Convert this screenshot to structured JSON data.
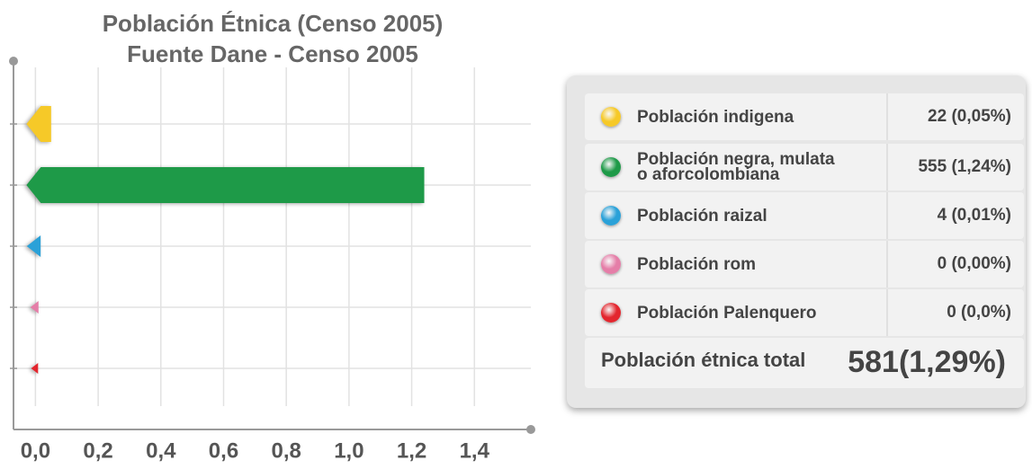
{
  "chart_data": {
    "type": "bar",
    "orientation": "horizontal",
    "title": [
      "Población Étnica (Censo 2005)",
      "Fuente Dane - Censo 2005"
    ],
    "categories": [
      null,
      null,
      null,
      null,
      null
    ],
    "values": [
      0.05,
      1.24,
      0.01,
      0,
      0
    ],
    "colors": [
      "#f6c928",
      "#1e9a48",
      "#2aa1d8",
      "#e57ea8",
      "#e3262e"
    ],
    "xlim": [
      -0.07,
      1.58
    ],
    "xticks": [
      {
        "value": 0,
        "label": "0,0"
      },
      {
        "value": 0.2,
        "label": "0,2"
      },
      {
        "value": 0.4,
        "label": "0,4"
      },
      {
        "value": 0.6,
        "label": "0,6"
      },
      {
        "value": 0.8,
        "label": "0,8"
      },
      {
        "value": 1.0,
        "label": "1,0"
      },
      {
        "value": 1.2,
        "label": "1,2"
      },
      {
        "value": 1.4,
        "label": "1,4"
      }
    ],
    "grid": true
  },
  "table": {
    "rows": [
      {
        "label": [
          "Población indigena"
        ],
        "value": "22 (0,05%)"
      },
      {
        "label": [
          "Población negra, mulata",
          "o aforcolombiana"
        ],
        "value": "555 (1,24%)"
      },
      {
        "label": [
          "Población raizal"
        ],
        "value": "4 (0,01%)"
      },
      {
        "label": [
          "Población rom"
        ],
        "value": "0 (0,00%)"
      },
      {
        "label": [
          "Población Palenquero"
        ],
        "value": "0 (0,0%)"
      }
    ],
    "total": {
      "label": "Población étnica total",
      "value": "581(1,29%)"
    }
  }
}
